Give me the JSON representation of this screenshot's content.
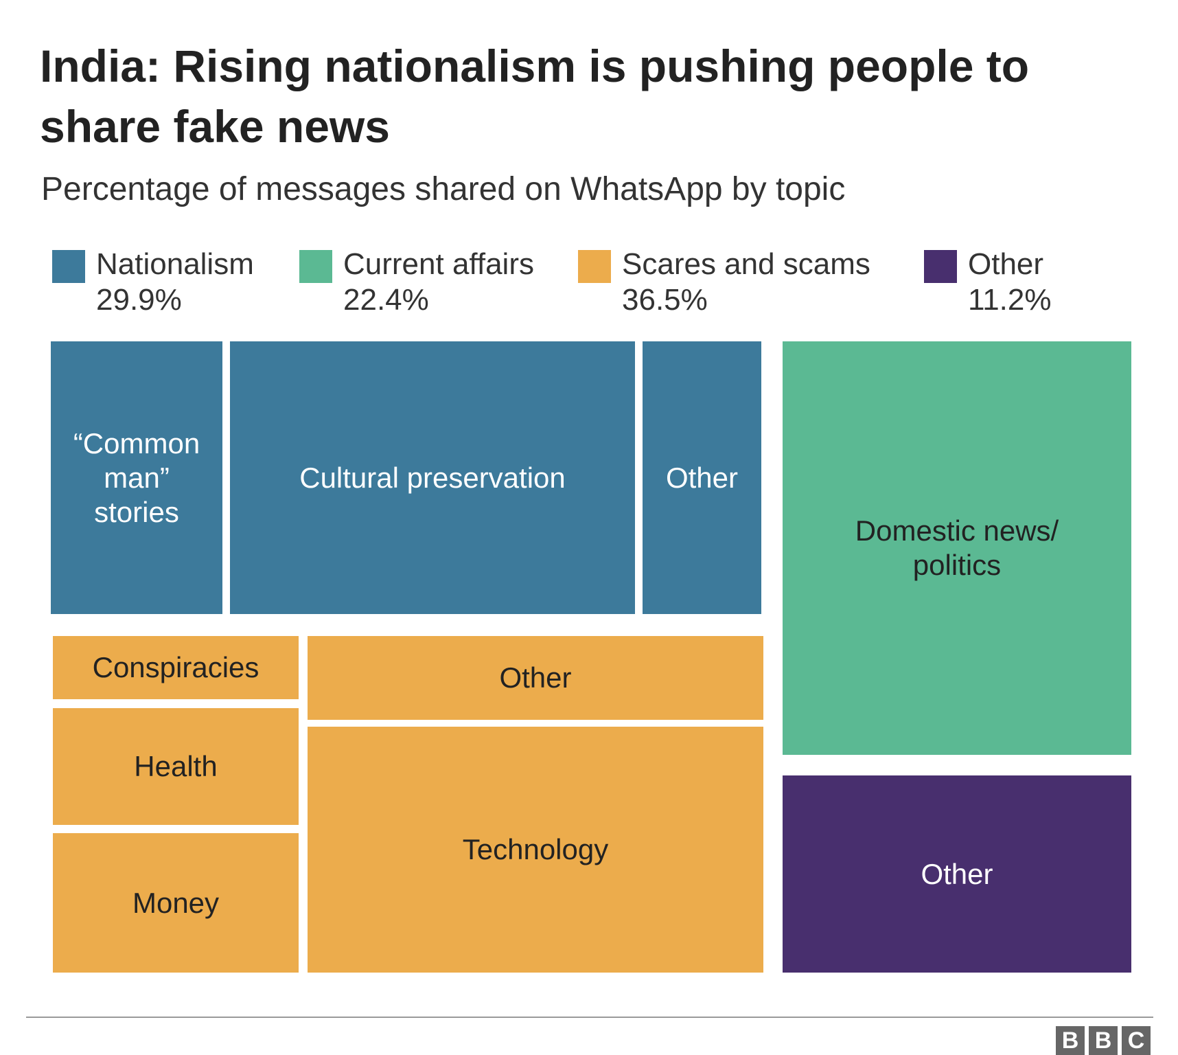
{
  "chart_data": {
    "type": "treemap",
    "title": "India: Rising nationalism is pushing people to share fake news",
    "subtitle": "Percentage of messages shared on WhatsApp by topic",
    "legend_placement": "top",
    "categories": [
      {
        "name": "Nationalism",
        "value_label": "29.9%",
        "value": 29.9,
        "color": "#3d7a9b",
        "children": [
          {
            "name": "“Common\nman”\nstories"
          },
          {
            "name": "Cultural preservation"
          },
          {
            "name": "Other"
          }
        ]
      },
      {
        "name": "Current affairs",
        "value_label": "22.4%",
        "value": 22.4,
        "color": "#5bb993",
        "children": [
          {
            "name": "Domestic news/\npolitics"
          }
        ]
      },
      {
        "name": "Scares and scams",
        "value_label": "36.5%",
        "value": 36.5,
        "color": "#ecac4c",
        "children": [
          {
            "name": "Conspiracies"
          },
          {
            "name": "Health"
          },
          {
            "name": "Money"
          },
          {
            "name": "Other"
          },
          {
            "name": "Technology"
          }
        ]
      },
      {
        "name": "Other",
        "value_label": "11.2%",
        "value": 11.2,
        "color": "#482f6e",
        "children": [
          {
            "name": "Other"
          }
        ]
      }
    ]
  },
  "source_logo": "BBC"
}
